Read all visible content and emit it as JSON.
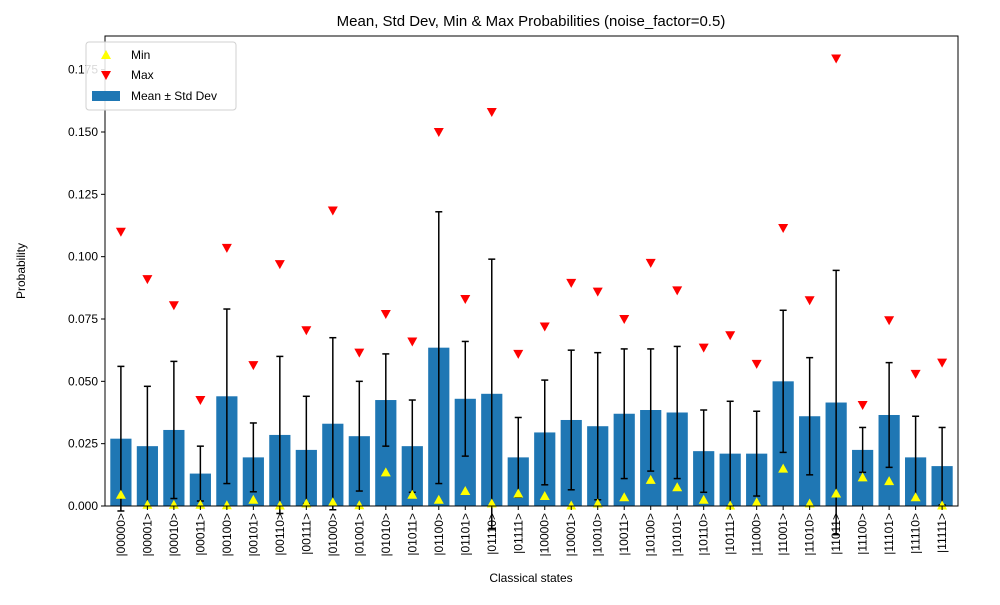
{
  "chart_data": {
    "type": "bar",
    "title": "Mean, Std Dev, Min & Max Probabilities (noise_factor=0.5)",
    "xlabel": "Classical states",
    "ylabel": "Probability",
    "ylim": [
      0,
      0.1885
    ],
    "yticks": [
      0.0,
      0.025,
      0.05,
      0.075,
      0.1,
      0.125,
      0.15,
      0.175
    ],
    "ytick_labels": [
      "0.000",
      "0.025",
      "0.050",
      "0.075",
      "0.100",
      "0.125",
      "0.150",
      "0.175"
    ],
    "categories": [
      "|00000>",
      "|00001>",
      "|00010>",
      "|00011>",
      "|00100>",
      "|00101>",
      "|00110>",
      "|00111>",
      "|01000>",
      "|01001>",
      "|01010>",
      "|01011>",
      "|01100>",
      "|01101>",
      "|01110>",
      "|01111>",
      "|10000>",
      "|10001>",
      "|10010>",
      "|10011>",
      "|10100>",
      "|10101>",
      "|10110>",
      "|10111>",
      "|11000>",
      "|11001>",
      "|11010>",
      "|11011>",
      "|11100>",
      "|11101>",
      "|11110>",
      "|11111>"
    ],
    "grid": false,
    "legend_position": "top-left",
    "series": [
      {
        "name": "Mean ± Std Dev",
        "color": "#1f77b4",
        "values": [
          0.027,
          0.024,
          0.0305,
          0.013,
          0.044,
          0.0195,
          0.0285,
          0.0225,
          0.033,
          0.028,
          0.0425,
          0.024,
          0.0635,
          0.043,
          0.045,
          0.0195,
          0.0295,
          0.0345,
          0.032,
          0.037,
          0.0385,
          0.0375,
          0.022,
          0.021,
          0.021,
          0.05,
          0.036,
          0.0415,
          0.0225,
          0.0365,
          0.0195,
          0.016
        ],
        "std": [
          0.029,
          0.024,
          0.0275,
          0.011,
          0.035,
          0.0138,
          0.0315,
          0.0215,
          0.0345,
          0.022,
          0.0185,
          0.0185,
          0.0545,
          0.023,
          0.054,
          0.016,
          0.021,
          0.028,
          0.0295,
          0.026,
          0.0245,
          0.0265,
          0.0165,
          0.021,
          0.017,
          0.0285,
          0.0235,
          0.053,
          0.009,
          0.021,
          0.0165,
          0.0155
        ]
      },
      {
        "name": "Min",
        "color": "#ffff00",
        "marker": "triangle-up",
        "values": [
          0.0045,
          0.0005,
          0.0005,
          0.0005,
          0.0003,
          0.0025,
          0.0002,
          0.001,
          0.0015,
          0.0003,
          0.0135,
          0.0045,
          0.0025,
          0.006,
          0.001,
          0.005,
          0.004,
          0.0002,
          0.001,
          0.0035,
          0.0105,
          0.0075,
          0.0025,
          0.0002,
          0.0015,
          0.015,
          0.001,
          0.005,
          0.0115,
          0.01,
          0.0035,
          0.0002
        ]
      },
      {
        "name": "Max",
        "color": "#ff0000",
        "marker": "triangle-down",
        "values": [
          0.11,
          0.091,
          0.0805,
          0.0425,
          0.1035,
          0.0565,
          0.097,
          0.0705,
          0.1185,
          0.0615,
          0.077,
          0.066,
          0.15,
          0.083,
          0.158,
          0.061,
          0.072,
          0.0895,
          0.086,
          0.075,
          0.0975,
          0.0865,
          0.0635,
          0.0685,
          0.057,
          0.1115,
          0.0825,
          0.1795,
          0.0405,
          0.0745,
          0.053,
          0.0575
        ]
      }
    ]
  }
}
